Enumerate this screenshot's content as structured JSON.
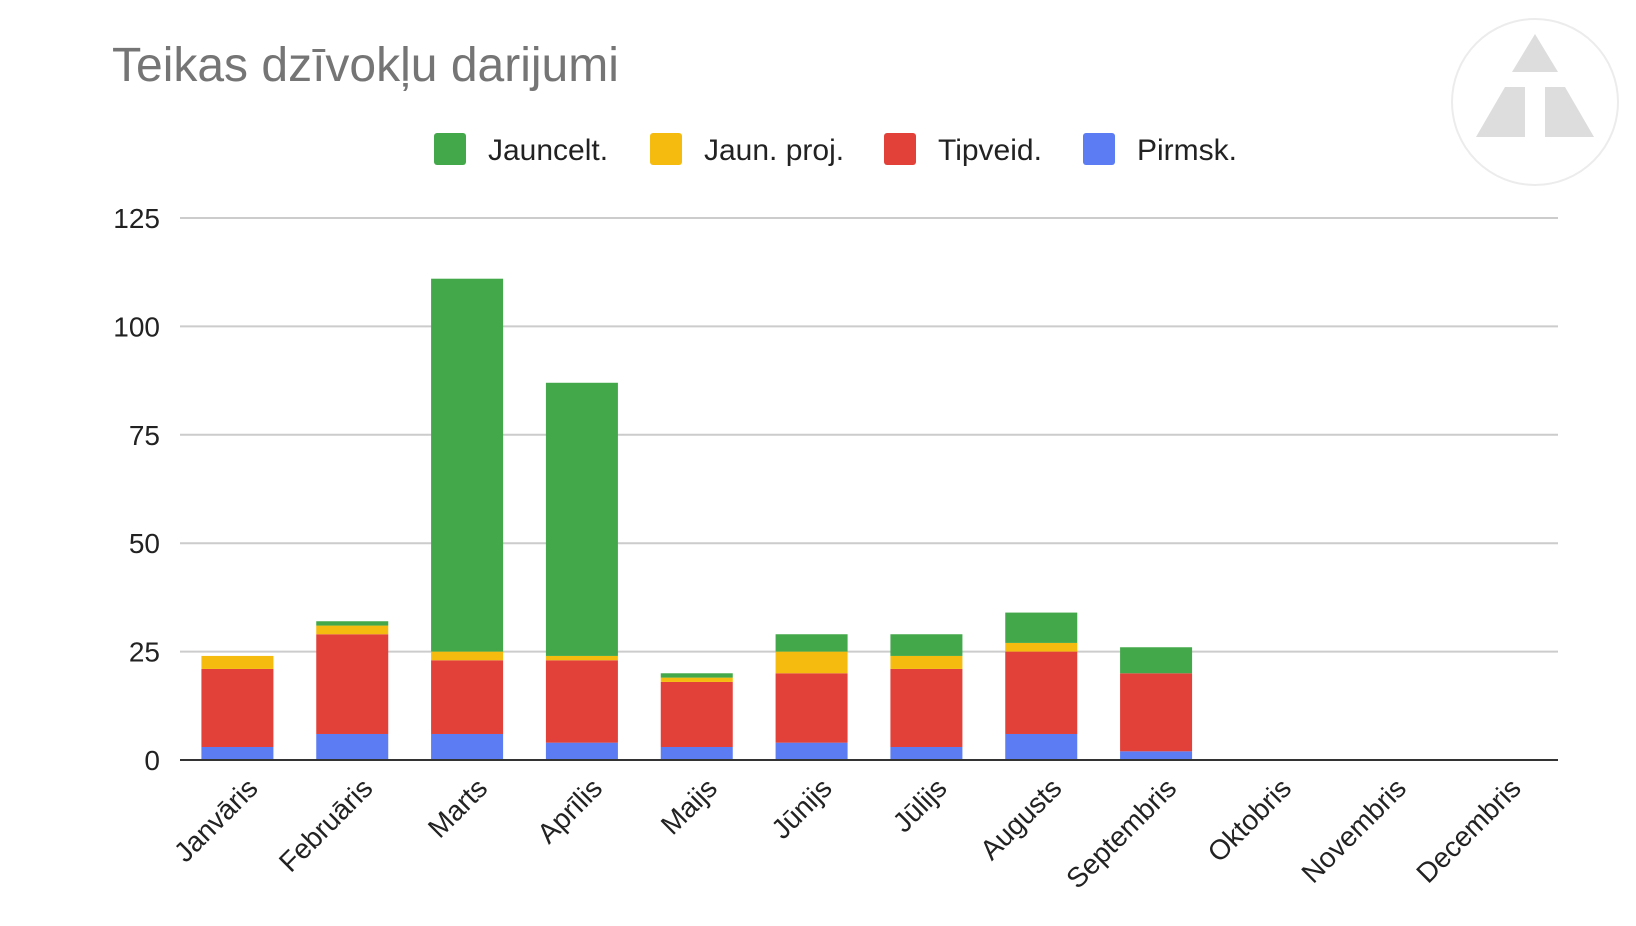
{
  "chart_data": {
    "type": "bar",
    "stacked": true,
    "title": "Teikas dzīvokļu darijumi",
    "xlabel": "",
    "ylabel": "",
    "ylim": [
      0,
      125
    ],
    "yticks": [
      0,
      25,
      50,
      75,
      100,
      125
    ],
    "grid": true,
    "legend_position": "top",
    "categories": [
      "Janvāris",
      "Februāris",
      "Marts",
      "Aprīlis",
      "Maijs",
      "Jūnijs",
      "Jūlijs",
      "Augusts",
      "Septembris",
      "Oktobris",
      "Novembris",
      "Decembris"
    ],
    "series": [
      {
        "name": "Pirmsk.",
        "color": "#5b7cf3",
        "values": [
          3,
          6,
          6,
          4,
          3,
          4,
          3,
          6,
          2,
          0,
          0,
          0
        ]
      },
      {
        "name": "Tipveid.",
        "color": "#e2413a",
        "values": [
          18,
          23,
          17,
          19,
          15,
          16,
          18,
          19,
          18,
          0,
          0,
          0
        ]
      },
      {
        "name": "Jaun. proj.",
        "color": "#f5bb0f",
        "values": [
          3,
          2,
          2,
          1,
          1,
          5,
          3,
          2,
          0,
          0,
          0,
          0
        ]
      },
      {
        "name": "Jauncelt.",
        "color": "#43a849",
        "values": [
          0,
          1,
          86,
          63,
          1,
          4,
          5,
          7,
          6,
          0,
          0,
          0
        ]
      }
    ],
    "legend_order": [
      "Jauncelt.",
      "Jaun. proj.",
      "Tipveid.",
      "Pirmsk."
    ]
  },
  "logo": {
    "name": "logo-watermark-icon"
  }
}
